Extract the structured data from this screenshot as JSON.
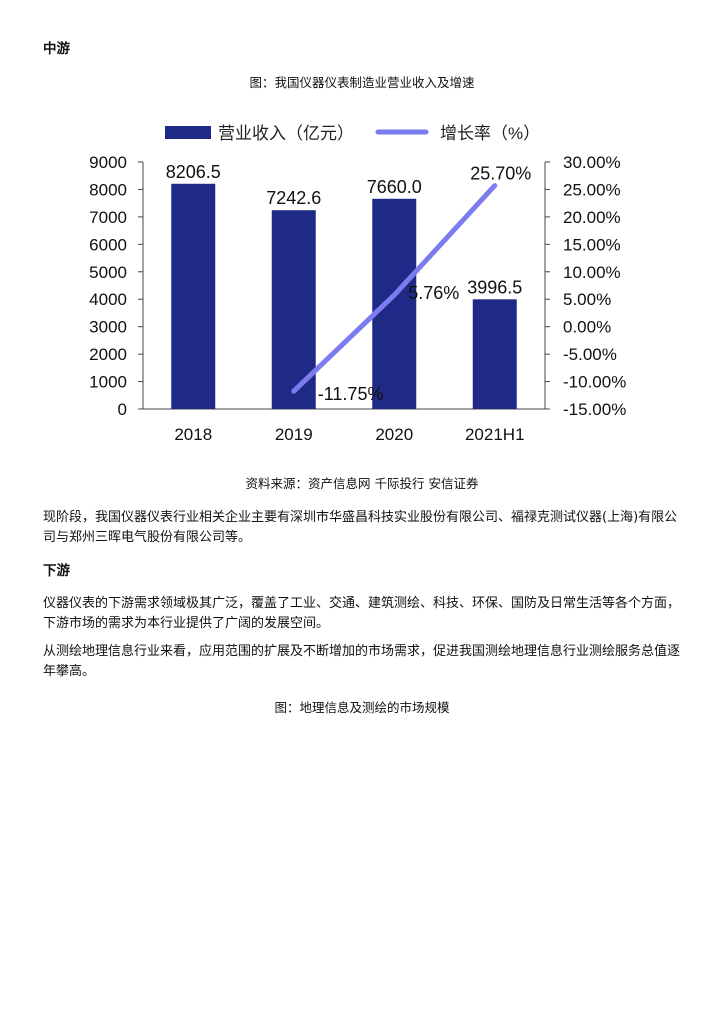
{
  "section_midstream": {
    "title": "中游"
  },
  "figure1": {
    "caption": "图：我国仪器仪表制造业营业收入及增速",
    "source": "资料来源：资产信息网 千际投行 安信证券"
  },
  "chart_data": {
    "type": "bar+line",
    "categories": [
      "2018",
      "2019",
      "2020",
      "2021H1"
    ],
    "series": [
      {
        "name": "营业收入（亿元）",
        "type": "bar",
        "axis": "left",
        "color": "#1f2a87",
        "values": [
          8206.5,
          7242.6,
          7660.0,
          3996.5
        ],
        "labels": [
          "8206.5",
          "7242.6",
          "7660.0",
          "3996.5"
        ]
      },
      {
        "name": "增长率（%）",
        "type": "line",
        "axis": "right",
        "color": "#7b7cf0",
        "x": [
          "2019",
          "2020",
          "2021H1"
        ],
        "values": [
          -11.75,
          5.76,
          25.7
        ],
        "labels": [
          "-11.75%",
          "5.76%",
          "25.70%"
        ]
      }
    ],
    "left_axis": {
      "ylim": [
        0,
        9000
      ],
      "ticks": [
        "0",
        "1000",
        "2000",
        "3000",
        "4000",
        "5000",
        "6000",
        "7000",
        "8000",
        "9000"
      ]
    },
    "right_axis": {
      "ylim": [
        -15,
        30
      ],
      "ticks": [
        "-15.00%",
        "-10.00%",
        "-5.00%",
        "0.00%",
        "5.00%",
        "10.00%",
        "15.00%",
        "20.00%",
        "25.00%",
        "30.00%"
      ]
    },
    "legend_position": "top",
    "grid": false
  },
  "paragraphs": {
    "p1": "现阶段，我国仪器仪表行业相关企业主要有深圳市华盛昌科技实业股份有限公司、福禄克测试仪器(上海)有限公司与郑州三晖电气股份有限公司等。",
    "p2": "仪器仪表的下游需求领域极其广泛，覆盖了工业、交通、建筑测绘、科技、环保、国防及日常生活等各个方面，下游市场的需求为本行业提供了广阔的发展空间。",
    "p3": "从测绘地理信息行业来看，应用范围的扩展及不断增加的市场需求，促进我国测绘地理信息行业测绘服务总值逐年攀高。"
  },
  "section_downstream": {
    "title": "下游"
  },
  "figure2": {
    "caption": "图：地理信息及测绘的市场规模"
  }
}
